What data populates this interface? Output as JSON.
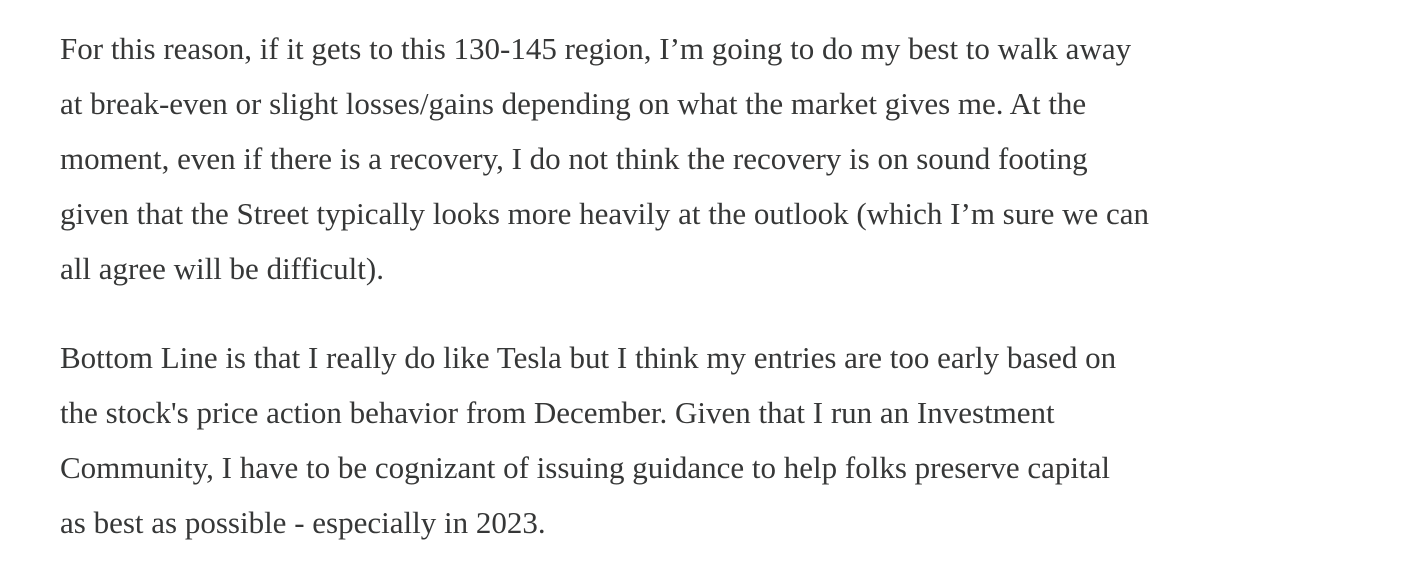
{
  "paragraphs": [
    {
      "lines": [
        "For this reason, if it gets to this 130-145 region, I’m going to do my best to walk away",
        "at break-even or slight losses/gains depending on what the market gives me. At the",
        "moment, even if there is a recovery, I do not think the recovery is on sound footing",
        "given that the Street typically looks more heavily at the outlook (which I’m sure we can",
        "all agree will be difficult)."
      ]
    },
    {
      "lines": [
        "Bottom Line is that I really do like Tesla but I think my entries are too early based on",
        "the stock's price action behavior from December. Given that I run an Investment",
        "Community, I have to be cognizant of issuing guidance to help folks preserve capital",
        "as best as possible - especially in 2023."
      ]
    }
  ]
}
